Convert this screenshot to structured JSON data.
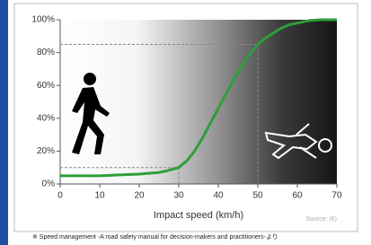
{
  "chart_data": {
    "type": "line",
    "x": [
      0,
      5,
      10,
      15,
      20,
      25,
      27,
      30,
      32,
      34,
      36,
      38,
      40,
      42,
      44,
      46,
      48,
      50,
      52,
      54,
      56,
      58,
      60,
      63,
      66,
      70
    ],
    "values": [
      5,
      5,
      5,
      5.5,
      6,
      7,
      8,
      10,
      14,
      20,
      28,
      37,
      46,
      55,
      64,
      72,
      79,
      85,
      89,
      92,
      95,
      97,
      98,
      99.5,
      100,
      100
    ],
    "color": "#2e9e3a",
    "xlabel": "Impact speed (km/h)",
    "xlim": [
      0,
      70
    ],
    "xticks": [
      0,
      10,
      20,
      30,
      40,
      50,
      60,
      70
    ],
    "ylim": [
      0,
      100
    ],
    "yticks": [
      {
        "value": 0,
        "label": "0%"
      },
      {
        "value": 20,
        "label": "20%"
      },
      {
        "value": 40,
        "label": "40%"
      },
      {
        "value": 60,
        "label": "60%"
      },
      {
        "value": 80,
        "label": "80%"
      },
      {
        "value": 100,
        "label": "100%"
      }
    ],
    "guides": [
      {
        "x": 30,
        "y": 10
      },
      {
        "x": 50,
        "y": 85
      }
    ],
    "source": "Source: (6)",
    "footnote": "※ Speed management -A road safety manual for decision-makers and practitioners-より"
  }
}
